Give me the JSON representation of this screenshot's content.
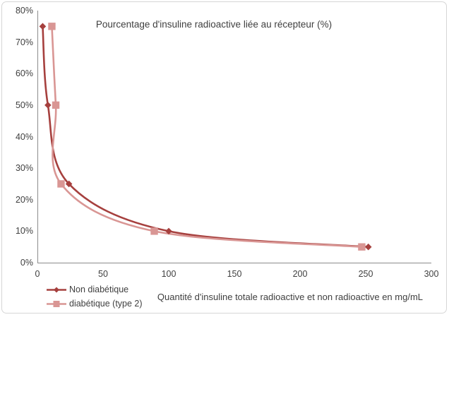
{
  "chart_data": {
    "type": "line",
    "title": "Pourcentage d'insuline radioactive liée au récepteur (%)",
    "xlabel": "Quantité d'insuline totale radioactive et non radioactive en mg/mL",
    "ylabel": "",
    "xlim": [
      0,
      300
    ],
    "ylim_percent": [
      0,
      80
    ],
    "x_ticks": [
      0,
      50,
      100,
      150,
      200,
      250,
      300
    ],
    "y_ticks": [
      {
        "value": 0,
        "label": "0%"
      },
      {
        "value": 10,
        "label": "10%"
      },
      {
        "value": 20,
        "label": "20%"
      },
      {
        "value": 30,
        "label": "30%"
      },
      {
        "value": 40,
        "label": "40%"
      },
      {
        "value": 50,
        "label": "50%"
      },
      {
        "value": 60,
        "label": "60%"
      },
      {
        "value": 70,
        "label": "70%"
      },
      {
        "value": 80,
        "label": "80%"
      }
    ],
    "grid": false,
    "legend_position": "bottom-left",
    "series": [
      {
        "name": "Non diabétique",
        "color": "#A6403E",
        "marker": "diamond",
        "points": [
          [
            4,
            75
          ],
          [
            8,
            50
          ],
          [
            24,
            25
          ],
          [
            100,
            10
          ],
          [
            252,
            5
          ]
        ]
      },
      {
        "name": "diabétique (type 2)",
        "color": "#D99694",
        "marker": "square",
        "points": [
          [
            11,
            75
          ],
          [
            14,
            50
          ],
          [
            18,
            25
          ],
          [
            89,
            10
          ],
          [
            247,
            5
          ]
        ]
      }
    ]
  },
  "colors": {
    "axis": "#8C8C8C",
    "text": "#3F3F3F",
    "frame_border": "#D6D6D6",
    "background": "#FFFFFF"
  }
}
